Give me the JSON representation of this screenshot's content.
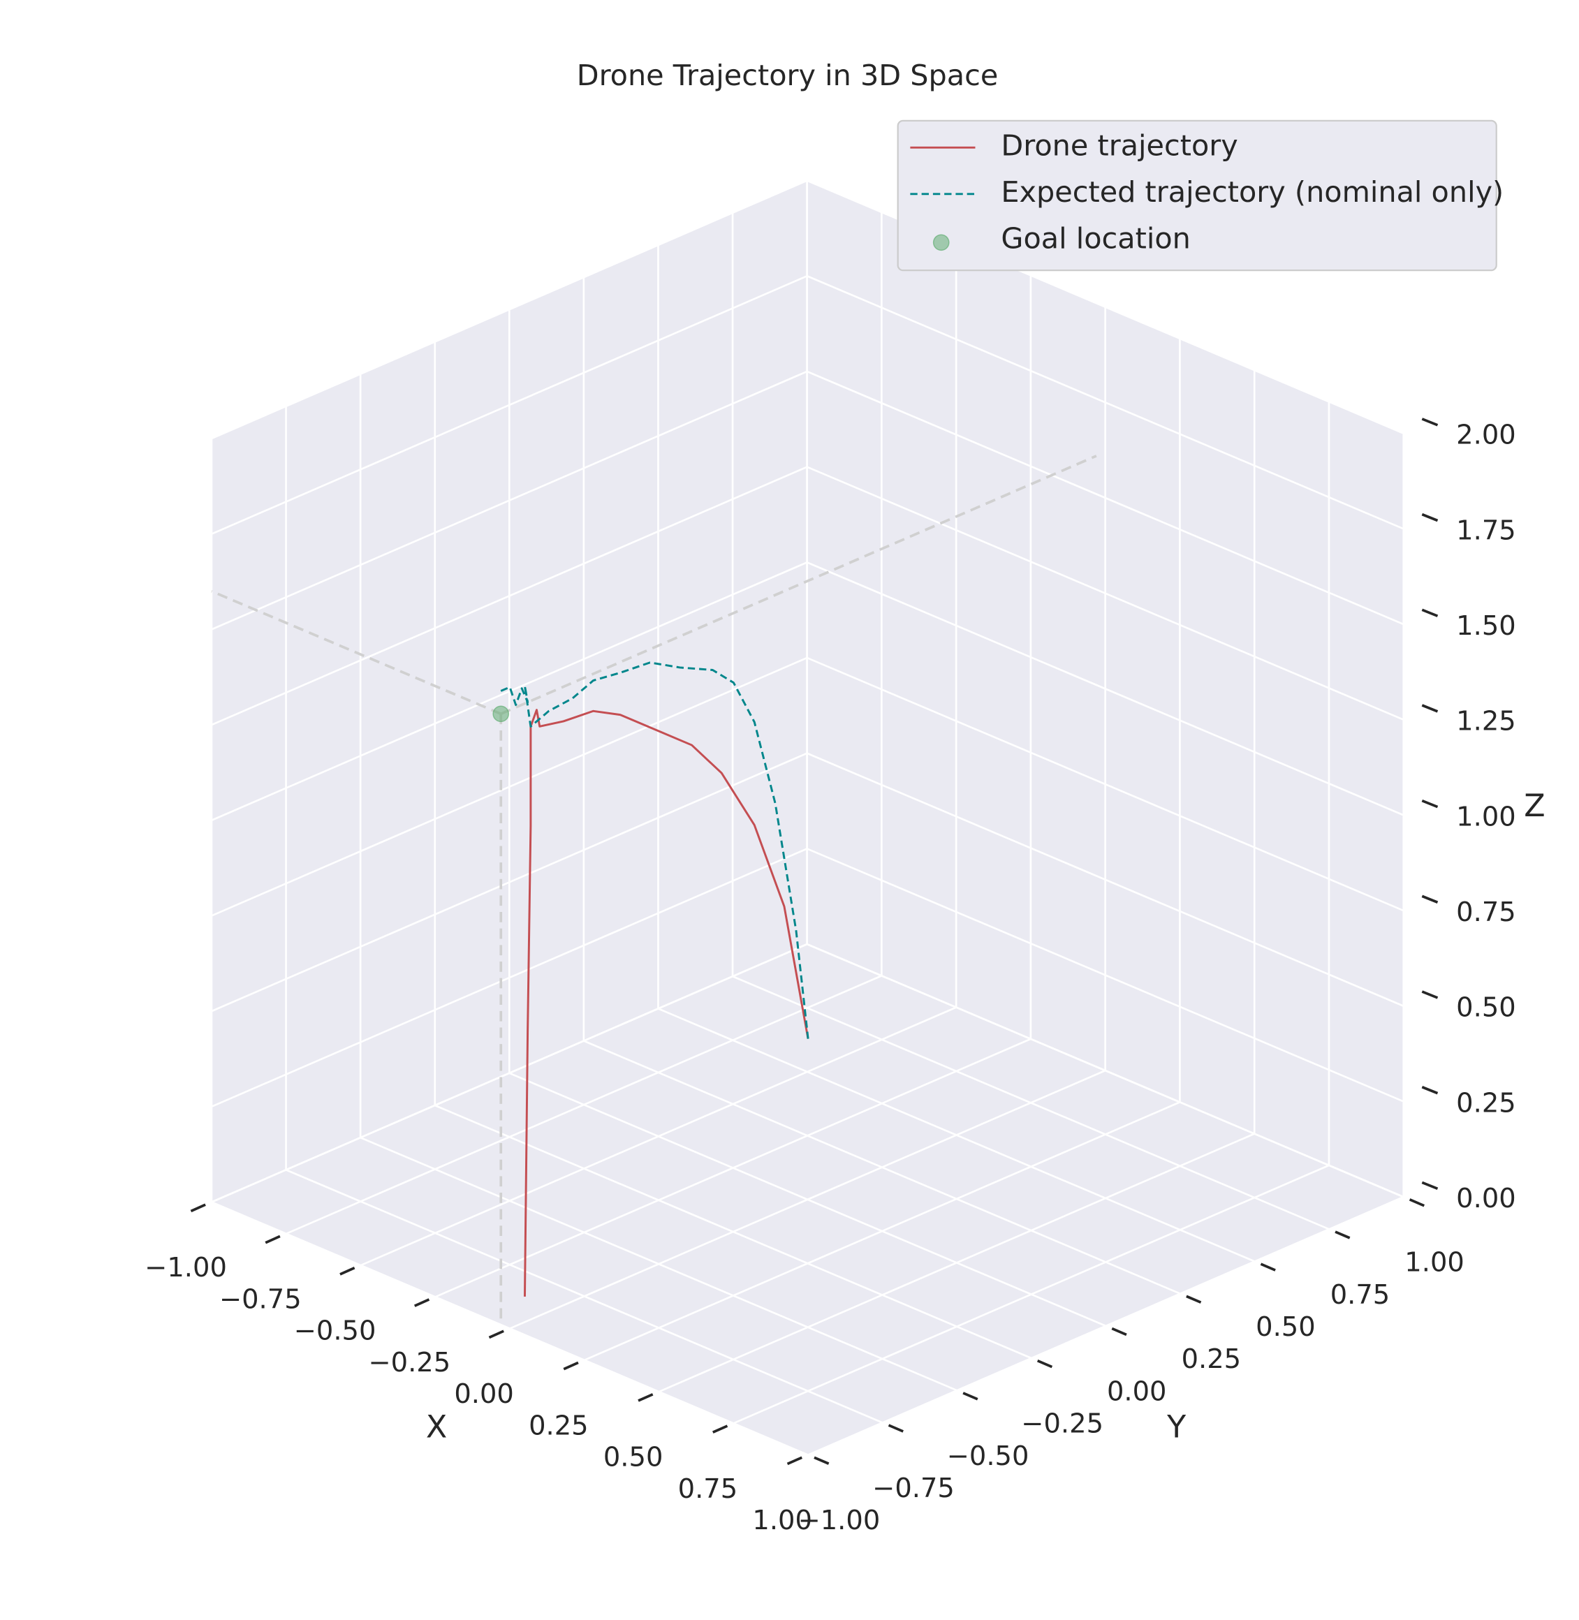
{
  "chart_data": {
    "type": "line3d",
    "title": "Drone Trajectory in 3D Space",
    "xlabel": "X",
    "ylabel": "Y",
    "zlabel": "Z",
    "xlim": [
      -1,
      1
    ],
    "ylim": [
      -1,
      1
    ],
    "zlim": [
      0,
      2
    ],
    "xticks": [
      {
        "value": -1,
        "label": "−1.00"
      },
      {
        "value": -0.75,
        "label": "−0.75"
      },
      {
        "value": -0.5,
        "label": "−0.50"
      },
      {
        "value": -0.25,
        "label": "−0.25"
      },
      {
        "value": 0,
        "label": "0.00"
      },
      {
        "value": 0.25,
        "label": "0.25"
      },
      {
        "value": 0.5,
        "label": "0.50"
      },
      {
        "value": 0.75,
        "label": "0.75"
      },
      {
        "value": 1,
        "label": "1.00"
      }
    ],
    "yticks": [
      {
        "value": -1,
        "label": "−1.00"
      },
      {
        "value": -0.75,
        "label": "−0.75"
      },
      {
        "value": -0.5,
        "label": "−0.50"
      },
      {
        "value": -0.25,
        "label": "−0.25"
      },
      {
        "value": 0,
        "label": "0.00"
      },
      {
        "value": 0.25,
        "label": "0.25"
      },
      {
        "value": 0.5,
        "label": "0.50"
      },
      {
        "value": 0.75,
        "label": "0.75"
      },
      {
        "value": 1,
        "label": "1.00"
      }
    ],
    "zticks": [
      {
        "value": 0,
        "label": "0.00"
      },
      {
        "value": 0.25,
        "label": "0.25"
      },
      {
        "value": 0.5,
        "label": "0.50"
      },
      {
        "value": 0.75,
        "label": "0.75"
      },
      {
        "value": 1,
        "label": "1.00"
      },
      {
        "value": 1.25,
        "label": "1.25"
      },
      {
        "value": 1.5,
        "label": "1.50"
      },
      {
        "value": 1.75,
        "label": "1.75"
      },
      {
        "value": 2,
        "label": "2.00"
      }
    ],
    "grid": true,
    "legend": "upper right",
    "series": [
      {
        "name": "Drone trajectory",
        "color": "#c44e52",
        "linestyle": "solid",
        "x": [
          0.05,
          0.06,
          0.07,
          0.07,
          0.09,
          0.1,
          0.18,
          0.28,
          0.37,
          0.5,
          0.61,
          0.71,
          0.82,
          0.92,
          1.0
        ],
        "y": [
          -1,
          -1,
          -1,
          -1,
          -1,
          -1,
          -1,
          -1,
          -1,
          -1,
          -1,
          -1,
          -1,
          -1,
          -1
        ],
        "z": [
          0.1,
          0.8,
          1.34,
          1.6,
          1.65,
          1.61,
          1.65,
          1.71,
          1.73,
          1.73,
          1.73,
          1.69,
          1.59,
          1.41,
          1.09
        ]
      },
      {
        "name": "Expected trajectory (nominal only)",
        "color": "#00868b",
        "linestyle": "dashed",
        "x": [
          -0.03,
          0.0,
          0.02,
          0.04,
          0.06,
          0.05,
          0.07,
          0.13,
          0.21,
          0.28,
          0.37,
          0.47,
          0.57,
          0.68,
          0.75,
          0.82,
          0.89,
          0.96,
          1.0
        ],
        "y": [
          -1,
          -1,
          -1,
          -1,
          -1,
          -1,
          -1,
          -1,
          -1,
          -1,
          -1,
          -1,
          -1,
          -1,
          -1,
          -1,
          -1,
          -1,
          -1
        ],
        "z": [
          1.66,
          1.68,
          1.64,
          1.69,
          1.66,
          1.7,
          1.6,
          1.66,
          1.72,
          1.79,
          1.84,
          1.9,
          1.92,
          1.95,
          1.94,
          1.86,
          1.67,
          1.36,
          1.09
        ]
      },
      {
        "name": "Goal location",
        "color": "#55a868",
        "linestyle": "none",
        "marker": "o",
        "x": [
          -0.03
        ],
        "y": [
          -1
        ],
        "z": [
          1.6
        ]
      }
    ]
  }
}
